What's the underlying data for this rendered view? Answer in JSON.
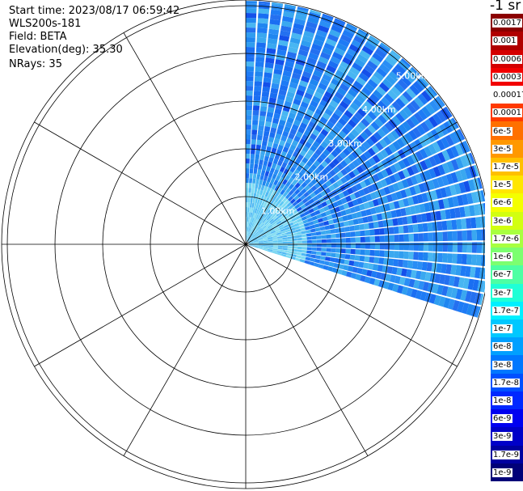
{
  "info": {
    "start_time": "Start time: 2023/08/17 06:59:42",
    "instrument": "WLS200s-181",
    "field": "Field: BETA",
    "elevation": "Elevation(deg): 35.30",
    "nrays": "NRays: 35"
  },
  "colorbar": {
    "title": "-1 sr",
    "labels": [
      "0.0017",
      "0.001",
      "0.0006",
      "0.0003",
      "0.00017",
      "0.0001",
      "6e-5",
      "3e-5",
      "1.7e-5",
      "1e-5",
      "6e-6",
      "3e-6",
      "1.7e-6",
      "1e-6",
      "6e-7",
      "3e-7",
      "1.7e-7",
      "1e-7",
      "6e-8",
      "3e-8",
      "1.7e-8",
      "1e-8",
      "6e-9",
      "3e-9",
      "1.7e-9",
      "1e-9"
    ],
    "colors": [
      "#8b0000",
      "#b00000",
      "#d40000",
      "#f20000",
      "#ffffff",
      "#ff3a00",
      "#ff7000",
      "#ff9800",
      "#ffc000",
      "#ffe600",
      "#f4ff00",
      "#d2ff10",
      "#a8ff40",
      "#7cff70",
      "#4dffa3",
      "#1fffd6",
      "#00f0ff",
      "#00c8ff",
      "#00a0ff",
      "#0078ff",
      "#0050ff",
      "#0028ff",
      "#0000f0",
      "#0000c8",
      "#0000a0",
      "#000078"
    ]
  },
  "chart_data": {
    "type": "polar",
    "title": "",
    "field": "BETA",
    "units": "sr-1",
    "elevation_deg": 35.3,
    "nrays": 35,
    "azimuth_range_deg": [
      0,
      108
    ],
    "ring_labels": [
      "1.00km",
      "2.00km",
      "3.00km",
      "4.00km",
      "5.00km"
    ],
    "ring_label_azimuth_deg": 45,
    "spokes_deg": [
      0,
      30,
      60,
      90,
      120,
      150,
      180,
      210,
      240,
      270,
      300,
      330
    ],
    "max_range_km": 5.1,
    "dominant_values": [
      "1e-7",
      "6e-8",
      "3e-8"
    ],
    "near_range_values": [
      "1.7e-7",
      "1e-7"
    ]
  }
}
